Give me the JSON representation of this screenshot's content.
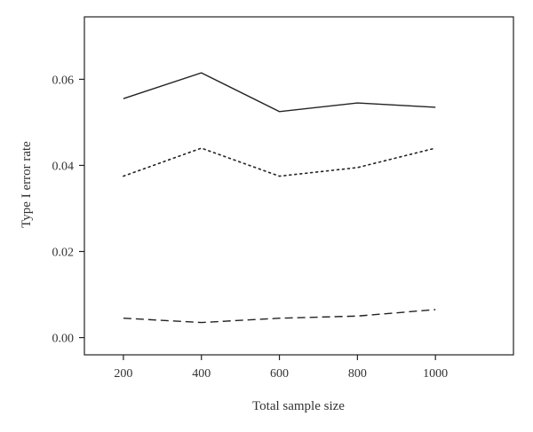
{
  "chart_data": {
    "type": "line",
    "title": "",
    "xlabel": "Total sample size",
    "ylabel": "Type I error rate",
    "x": [
      200,
      400,
      600,
      800,
      1000
    ],
    "x_ticks": [
      "200",
      "400",
      "600",
      "800",
      "1000"
    ],
    "y_ticks": [
      "0.00",
      "0.02",
      "0.04",
      "0.06"
    ],
    "y_tick_values": [
      0.0,
      0.02,
      0.04,
      0.06
    ],
    "xlim": [
      100,
      1200
    ],
    "ylim": [
      -0.004,
      0.0745
    ],
    "grid": false,
    "legend": "none",
    "series": [
      {
        "style": "solid",
        "color": "#222222",
        "values": [
          0.0555,
          0.0615,
          0.0525,
          0.0545,
          0.0535
        ]
      },
      {
        "style": "dotted",
        "color": "#222222",
        "values": [
          0.0375,
          0.044,
          0.0375,
          0.0395,
          0.044
        ]
      },
      {
        "style": "dashed",
        "color": "#222222",
        "values": [
          0.0045,
          0.0035,
          0.0045,
          0.005,
          0.0065
        ]
      }
    ]
  }
}
